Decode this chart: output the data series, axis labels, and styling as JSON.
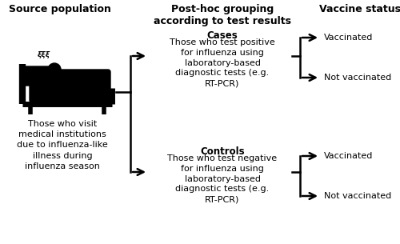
{
  "bg_color": "#ffffff",
  "col1_header": "Source population",
  "col2_header": "Post-hoc grouping\naccording to test results",
  "col3_header": "Vaccine status",
  "source_text": "Those who visit\nmedical institutions\ndue to influenza-like\nillness during\ninfluenza season",
  "cases_title": "Cases",
  "cases_text": "Those who test positive\nfor influenza using\nlaboratory-based\ndiagnostic tests (e.g.\nRT-PCR)",
  "controls_title": "Controls",
  "controls_text": "Those who test negative\nfor influenza using\nlaboratory-based\ndiagnostic tests (e.g.\nRT-PCR)",
  "vaccinated": "Vaccinated",
  "not_vaccinated": "Not vaccinated",
  "text_color": "#000000",
  "col1_hfs": 9,
  "col2_hfs": 9,
  "col3_hfs": 9,
  "body_fontsize": 8,
  "title_fontsize": 8.5,
  "lw": 1.8
}
